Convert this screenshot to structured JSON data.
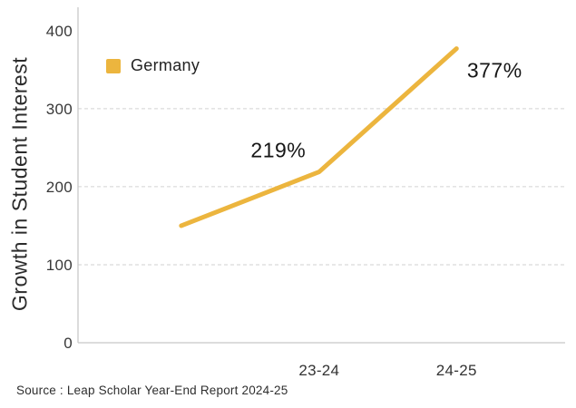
{
  "page": {
    "background": "#ffffff"
  },
  "chart_data": {
    "type": "line",
    "title": "",
    "xlabel": "",
    "ylabel": "Growth in Student Interest",
    "categories": [
      "",
      "23-24",
      "24-25"
    ],
    "series": [
      {
        "name": "Germany",
        "color": "#ECB53E",
        "values": [
          150,
          219,
          377
        ],
        "point_labels": [
          "",
          "219%",
          "377%"
        ]
      }
    ],
    "ylim": [
      0,
      430
    ],
    "yticks": [
      0,
      100,
      200,
      300,
      400
    ],
    "gridline_values": [
      100,
      200,
      300
    ],
    "grid_style": "dashed horizontal",
    "legend_position": "top-left-inside"
  },
  "legend": {
    "items": [
      {
        "label": "Germany",
        "swatch_color": "#ECB53E"
      }
    ]
  },
  "footer": {
    "source_text": "Source : Leap Scholar Year-End Report 2024-25"
  },
  "colors": {
    "accent": "#ECB53E",
    "axis_line": "#c8c8c8",
    "gridline": "#d2d2d2",
    "text_dark": "#161616"
  }
}
